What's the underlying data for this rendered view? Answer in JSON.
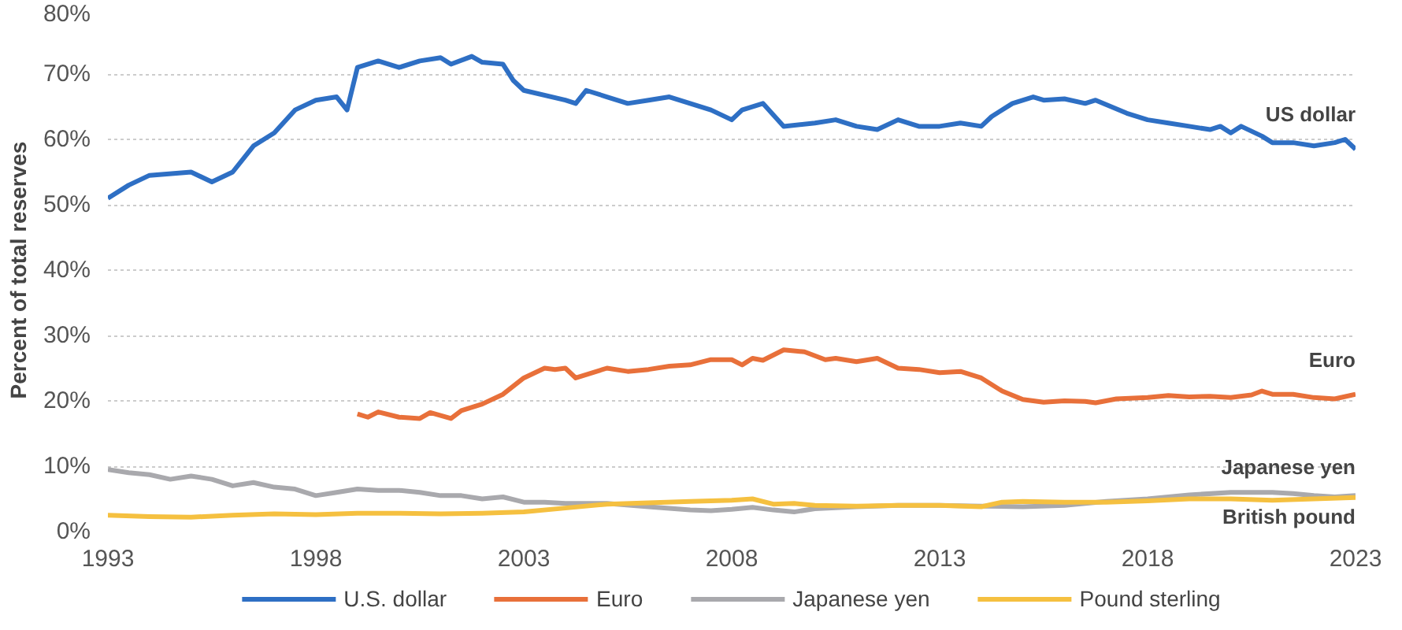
{
  "chart_data": {
    "type": "line",
    "ylabel": "Percent of total reserves",
    "xlim": [
      1993,
      2023
    ],
    "xticks": [
      1993,
      1998,
      2003,
      2008,
      2013,
      2018,
      2023
    ],
    "ylim": [
      0,
      80
    ],
    "yticks": [
      {
        "value": 0,
        "label": "0%"
      },
      {
        "value": 10,
        "label": "10%"
      },
      {
        "value": 20,
        "label": "20%"
      },
      {
        "value": 30,
        "label": "30%"
      },
      {
        "value": 40,
        "label": "40%"
      },
      {
        "value": 50,
        "label": "50%"
      },
      {
        "value": 60,
        "label": "60%"
      },
      {
        "value": 70,
        "label": "70%"
      },
      {
        "value": 80,
        "label": "80%"
      }
    ],
    "grid": "y",
    "legend": "bottom",
    "marker": "none",
    "line_style": "solid",
    "series": [
      {
        "name": "U.S. dollar",
        "color": "#2e6fc4",
        "x": [
          1993,
          1993.5,
          1994,
          1995,
          1995.5,
          1996,
          1996.5,
          1997,
          1997.5,
          1998,
          1998.5,
          1998.75,
          1999,
          1999.5,
          2000,
          2000.5,
          2001,
          2001.25,
          2001.75,
          2002,
          2002.5,
          2002.75,
          2003,
          2004,
          2004.25,
          2004.5,
          2005,
          2005.5,
          2006,
          2006.5,
          2007,
          2007.5,
          2008,
          2008.25,
          2008.75,
          2009.25,
          2010,
          2010.5,
          2011,
          2011.5,
          2012,
          2012.5,
          2013,
          2013.5,
          2014,
          2014.25,
          2014.75,
          2015.25,
          2015.5,
          2016,
          2016.5,
          2016.75,
          2017.5,
          2018,
          2018.5,
          2019,
          2019.5,
          2019.75,
          2020,
          2020.25,
          2020.75,
          2021,
          2021.5,
          2022,
          2022.5,
          2022.75,
          2023
        ],
        "values": [
          51,
          53,
          54.5,
          55,
          53.5,
          55,
          59,
          61,
          64.5,
          66,
          66.5,
          64.5,
          71,
          72,
          71,
          72,
          72.5,
          71.5,
          72.7,
          71.8,
          71.5,
          69,
          67.5,
          66,
          65.5,
          67.5,
          66.5,
          65.5,
          66,
          66.5,
          65.5,
          64.5,
          63,
          64.5,
          65.5,
          62,
          62.5,
          63,
          62,
          61.5,
          63,
          62,
          62,
          62.5,
          62,
          63.5,
          65.5,
          66.5,
          66,
          66.2,
          65.5,
          66,
          64,
          63,
          62.5,
          62,
          61.5,
          62,
          61,
          62,
          60.5,
          59.5,
          59.5,
          59,
          59.5,
          60,
          58.5
        ]
      },
      {
        "name": "Euro",
        "color": "#e8703a",
        "x": [
          1999,
          1999.25,
          1999.5,
          2000,
          2000.5,
          2000.75,
          2001.25,
          2001.5,
          2002,
          2002.5,
          2003,
          2003.5,
          2003.75,
          2004,
          2004.25,
          2005,
          2005.5,
          2006,
          2006.5,
          2007,
          2007.5,
          2008,
          2008.25,
          2008.5,
          2008.75,
          2009.25,
          2009.75,
          2010.25,
          2010.5,
          2011,
          2011.5,
          2012,
          2012.5,
          2013,
          2013.5,
          2014,
          2014.5,
          2015,
          2015.5,
          2016,
          2016.5,
          2016.75,
          2017.25,
          2018,
          2018.5,
          2019,
          2019.5,
          2020,
          2020.5,
          2020.75,
          2021,
          2021.5,
          2022,
          2022.5,
          2023
        ],
        "values": [
          18,
          17.5,
          18.3,
          17.5,
          17.3,
          18.2,
          17.3,
          18.5,
          19.5,
          21,
          23.5,
          25,
          24.8,
          25,
          23.5,
          25,
          24.5,
          24.8,
          25.3,
          25.5,
          26.3,
          26.3,
          25.5,
          26.5,
          26.2,
          27.8,
          27.5,
          26.3,
          26.5,
          26,
          26.5,
          25,
          24.8,
          24.3,
          24.5,
          23.5,
          21.5,
          20.2,
          19.8,
          20,
          19.9,
          19.7,
          20.3,
          20.5,
          20.8,
          20.6,
          20.7,
          20.5,
          20.9,
          21.5,
          21,
          21,
          20.5,
          20.3,
          21
        ]
      },
      {
        "name": "Japanese yen",
        "color": "#a9a9ad",
        "x": [
          1993,
          1993.5,
          1994,
          1994.5,
          1995,
          1995.5,
          1996,
          1996.5,
          1997,
          1997.5,
          1998,
          1998.5,
          1999,
          1999.5,
          2000,
          2000.5,
          2001,
          2001.5,
          2002,
          2002.5,
          2003,
          2003.5,
          2004,
          2005,
          2006,
          2007,
          2007.5,
          2008,
          2008.5,
          2009,
          2009.5,
          2010,
          2011,
          2012,
          2013,
          2014,
          2015,
          2016,
          2017,
          2018,
          2019,
          2020,
          2021,
          2021.5,
          2022,
          2022.5,
          2023
        ],
        "values": [
          9.5,
          9,
          8.7,
          8,
          8.5,
          8,
          7,
          7.5,
          6.8,
          6.5,
          5.5,
          6,
          6.5,
          6.3,
          6.3,
          6,
          5.5,
          5.5,
          5,
          5.3,
          4.5,
          4.5,
          4.3,
          4.3,
          3.8,
          3.3,
          3.2,
          3.4,
          3.7,
          3.3,
          3,
          3.5,
          3.8,
          4,
          4,
          3.9,
          3.8,
          4,
          4.6,
          5,
          5.6,
          6,
          6,
          5.8,
          5.5,
          5.3,
          5.5
        ]
      },
      {
        "name": "Pound sterling",
        "color": "#f5c040",
        "x": [
          1993,
          1994,
          1995,
          1996,
          1997,
          1998,
          1999,
          2000,
          2001,
          2002,
          2003,
          2004,
          2005,
          2006,
          2007,
          2008,
          2008.5,
          2009,
          2009.5,
          2010,
          2011,
          2012,
          2013,
          2014,
          2014.5,
          2015,
          2016,
          2017,
          2018,
          2019,
          2020,
          2021,
          2022,
          2023
        ],
        "values": [
          2.5,
          2.3,
          2.2,
          2.5,
          2.7,
          2.6,
          2.8,
          2.8,
          2.7,
          2.8,
          3,
          3.6,
          4.2,
          4.4,
          4.6,
          4.8,
          5,
          4.2,
          4.3,
          4,
          3.9,
          4,
          4,
          3.8,
          4.5,
          4.6,
          4.5,
          4.5,
          4.7,
          5,
          5,
          4.8,
          5,
          5.2
        ]
      }
    ],
    "annotations": [
      "US dollar",
      "Euro",
      "Japanese yen",
      "British pound"
    ]
  }
}
